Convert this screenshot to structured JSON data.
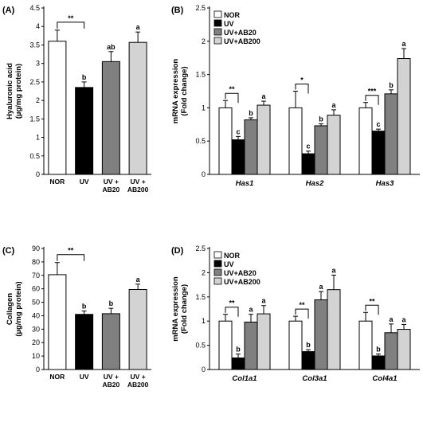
{
  "series_colors": [
    "#ffffff",
    "#000000",
    "#808080",
    "#d3d3d3"
  ],
  "chart_data": [
    {
      "panel_label": "(A)",
      "type": "bar",
      "ylabel_lines": [
        "Hyaluronic acid",
        "(µg/mg protein)"
      ],
      "ylim": [
        0,
        4.5
      ],
      "yticks": [
        0,
        0.5,
        1,
        1.5,
        2,
        2.5,
        3,
        3.5,
        4,
        4.5
      ],
      "categories": [
        [
          "NOR"
        ],
        [
          "UV"
        ],
        [
          "UV +",
          "AB20"
        ],
        [
          "UV +",
          "AB200"
        ]
      ],
      "values": [
        3.6,
        2.35,
        3.05,
        3.57
      ],
      "errors": [
        0.3,
        0.15,
        0.27,
        0.28
      ],
      "letters": [
        "",
        "b",
        "ab",
        "a"
      ],
      "comparison": {
        "from": 0,
        "to": 1,
        "label": "**"
      }
    },
    {
      "panel_label": "(B)",
      "type": "bar",
      "ylabel_lines": [
        "mRNA expression",
        "(Fold change)"
      ],
      "ylim": [
        0,
        2.5
      ],
      "yticks": [
        0,
        0.5,
        1,
        1.5,
        2,
        2.5
      ],
      "categories": [
        "Has1",
        "Has2",
        "Has3"
      ],
      "legend": [
        "NOR",
        "UV",
        "UV+AB20",
        "UV+AB200"
      ],
      "series": [
        {
          "name": "NOR",
          "values": [
            1.0,
            1.0,
            1.0
          ],
          "errors": [
            0.11,
            0.25,
            0.08
          ],
          "letters": [
            "",
            "",
            ""
          ]
        },
        {
          "name": "UV",
          "values": [
            0.52,
            0.31,
            0.65
          ],
          "errors": [
            0.05,
            0.04,
            0.03
          ],
          "letters": [
            "c",
            "c",
            "c"
          ]
        },
        {
          "name": "UV+AB20",
          "values": [
            0.82,
            0.73,
            1.21
          ],
          "errors": [
            0.03,
            0.03,
            0.06
          ],
          "letters": [
            "b",
            "b",
            "b"
          ]
        },
        {
          "name": "UV+AB200",
          "values": [
            1.04,
            0.89,
            1.74
          ],
          "errors": [
            0.06,
            0.08,
            0.15
          ],
          "letters": [
            "a",
            "a",
            "a"
          ]
        }
      ],
      "comparisons": [
        {
          "label": "**"
        },
        {
          "label": "*"
        },
        {
          "label": "***"
        }
      ]
    },
    {
      "panel_label": "(C)",
      "type": "bar",
      "ylabel_lines": [
        "Collagen",
        "(µg/mg protein)"
      ],
      "ylim": [
        0,
        90
      ],
      "yticks": [
        0,
        10,
        20,
        30,
        40,
        50,
        60,
        70,
        80,
        90
      ],
      "categories": [
        [
          "NOR"
        ],
        [
          "UV"
        ],
        [
          "UV +",
          "AB20"
        ],
        [
          "UV +",
          "AB200"
        ]
      ],
      "values": [
        70.5,
        41,
        41.5,
        59.5
      ],
      "errors": [
        9,
        2.5,
        4,
        4
      ],
      "letters": [
        "",
        "b",
        "b",
        "a"
      ],
      "comparison": {
        "from": 0,
        "to": 1,
        "label": "**"
      }
    },
    {
      "panel_label": "(D)",
      "type": "bar",
      "ylabel_lines": [
        "mRNA expression",
        "(Fold change)"
      ],
      "ylim": [
        0,
        2.5
      ],
      "yticks": [
        0,
        0.5,
        1,
        1.5,
        2,
        2.5
      ],
      "categories": [
        "Col1a1",
        "Col3a1",
        "Col4a1"
      ],
      "legend": [
        "NOR",
        "UV",
        "UV+AB20",
        "UV+AB200"
      ],
      "series": [
        {
          "name": "NOR",
          "values": [
            1.0,
            1.0,
            1.0
          ],
          "errors": [
            0.14,
            0.1,
            0.18
          ],
          "letters": [
            "",
            "",
            ""
          ]
        },
        {
          "name": "UV",
          "values": [
            0.24,
            0.37,
            0.28
          ],
          "errors": [
            0.08,
            0.04,
            0.04
          ],
          "letters": [
            "b",
            "b",
            "b"
          ]
        },
        {
          "name": "UV+AB20",
          "values": [
            0.98,
            1.44,
            0.76
          ],
          "errors": [
            0.16,
            0.17,
            0.18
          ],
          "letters": [
            "a",
            "a",
            "a"
          ]
        },
        {
          "name": "UV+AB200",
          "values": [
            1.15,
            1.65,
            0.83
          ],
          "errors": [
            0.17,
            0.3,
            0.1
          ],
          "letters": [
            "a",
            "a",
            "a"
          ]
        }
      ],
      "comparisons": [
        {
          "label": "**"
        },
        {
          "label": "**"
        },
        {
          "label": "**"
        }
      ]
    }
  ]
}
